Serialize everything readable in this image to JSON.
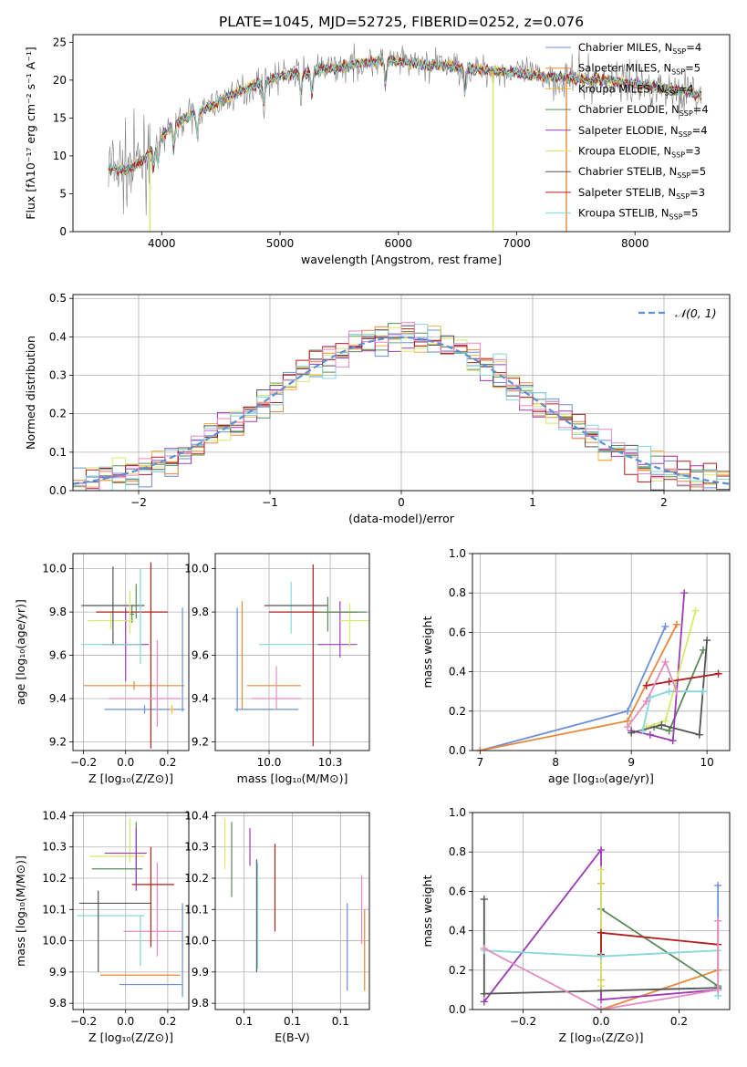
{
  "figure_title": "PLATE=1045, MJD=52725, FIBERID=0252, z=0.076",
  "colors": {
    "Chabrier MILES": "#6a90d8",
    "Salpeter MILES": "#e8883a",
    "Kroupa MILES": "#f2b33d",
    "Chabrier ELODIE": "#5a8a5a",
    "Salpeter ELODIE": "#9b3bb5",
    "Kroupa ELODIE": "#d8e86a",
    "Chabrier STELIB": "#555555",
    "Salpeter STELIB": "#b01e1e",
    "Kroupa STELIB": "#84d8d8",
    "pink": "#e58ac0",
    "data": "#7f7f7f",
    "normal": "#5b8fd6"
  },
  "chart_data": [
    {
      "id": "spectrum",
      "type": "line",
      "title": "PLATE=1045, MJD=52725, FIBERID=0252, z=0.076",
      "xlabel": "wavelength [Angstrom, rest frame]",
      "ylabel": "Flux [fλ10⁻¹⁷ erg cm⁻² s⁻¹ A⁻¹]",
      "xlim": [
        3250,
        8800
      ],
      "ylim": [
        0,
        26
      ],
      "xticks": [
        4000,
        5000,
        6000,
        7000,
        8000
      ],
      "yticks": [
        0,
        5,
        10,
        15,
        20,
        25
      ],
      "legend_position": "top-right",
      "legend": [
        {
          "label": "Chabrier MILES, N",
          "sub": "SSP",
          "suffix": "=4"
        },
        {
          "label": "Salpeter MILES, N",
          "sub": "SSP",
          "suffix": "=5"
        },
        {
          "label": "Kroupa MILES, N",
          "sub": "SSP",
          "suffix": "=4"
        },
        {
          "label": "Chabrier ELODIE, N",
          "sub": "SSP",
          "suffix": "=4"
        },
        {
          "label": "Salpeter ELODIE, N",
          "sub": "SSP",
          "suffix": "=4"
        },
        {
          "label": "Kroupa ELODIE, N",
          "sub": "SSP",
          "suffix": "=3"
        },
        {
          "label": "Chabrier STELIB, N",
          "sub": "SSP",
          "suffix": "=5"
        },
        {
          "label": "Salpeter STELIB, N",
          "sub": "SSP",
          "suffix": "=3"
        },
        {
          "label": "Kroupa STELIB, N",
          "sub": "SSP",
          "suffix": "=5"
        }
      ],
      "continuum": {
        "x": [
          3550,
          3700,
          3850,
          3950,
          4050,
          4200,
          4400,
          4600,
          4800,
          5000,
          5200,
          5400,
          5600,
          5800,
          6000,
          6200,
          6400,
          6600,
          6800,
          7000,
          7200,
          7400,
          7600,
          7800,
          8000,
          8200,
          8400,
          8550
        ],
        "y": [
          8.5,
          8.0,
          9.5,
          11.5,
          13.5,
          15.0,
          16.5,
          18.0,
          19.5,
          20.5,
          21.0,
          21.5,
          22.0,
          22.5,
          22.5,
          22.0,
          22.0,
          21.5,
          21.2,
          21.0,
          20.6,
          20.3,
          20.0,
          20.0,
          19.5,
          19.0,
          18.6,
          18.0
        ]
      },
      "drops": [
        {
          "x": 6800,
          "y": 0
        },
        {
          "x": 7420,
          "y": 0
        },
        {
          "x": 3900,
          "y": 0
        }
      ]
    },
    {
      "id": "residuals",
      "type": "area",
      "xlabel": "(data-model)/error",
      "ylabel": "Normed distribution",
      "xlim": [
        -2.5,
        2.5
      ],
      "ylim": [
        0,
        0.51
      ],
      "xticks": [
        -2,
        -1,
        0,
        1,
        2
      ],
      "yticks": [
        0.0,
        0.1,
        0.2,
        0.3,
        0.4,
        0.5
      ],
      "grid": true,
      "legend_position": "top-right",
      "normal_label": "𝒩(0, 1)",
      "bin_edges_start": -2.5,
      "bin_width": 0.1
    },
    {
      "id": "age_vs_Z",
      "type": "scatter",
      "xlabel": "Z [log₁₀(Z/Z⊙)]",
      "ylabel": "age  [log₁₀(age/yr)]",
      "xlim": [
        -0.25,
        0.3
      ],
      "ylim": [
        9.16,
        10.07
      ],
      "xticks": [
        -0.2,
        0.0,
        0.2
      ],
      "yticks": [
        9.2,
        9.4,
        9.6,
        9.8,
        10.0
      ],
      "grid": true,
      "points": [
        {
          "c": "Chabrier MILES",
          "x": 0.09,
          "y": 9.35,
          "xe": 0.19,
          "ye": 0.02
        },
        {
          "c": "Salpeter MILES",
          "x": 0.04,
          "y": 9.46,
          "xe": 0.24,
          "ye": 0.02
        },
        {
          "c": "Kroupa MILES",
          "x": 0.22,
          "y": 9.35,
          "xe": 0.01,
          "ye": 0.02
        },
        {
          "c": "Chabrier ELODIE",
          "x": 0.03,
          "y": 9.79,
          "xe": 0.01,
          "ye": 0.04
        },
        {
          "c": "Salpeter ELODIE",
          "x": 0.0,
          "y": 9.65,
          "xe": 0.11,
          "ye": 0.17
        },
        {
          "c": "Kroupa ELODIE",
          "x": -0.07,
          "y": 9.76,
          "xe": 0.11,
          "ye": 0.04
        },
        {
          "c": "Chabrier STELIB",
          "x": -0.06,
          "y": 9.83,
          "xe": 0.15,
          "ye": 0.18
        },
        {
          "c": "Salpeter STELIB",
          "x": 0.03,
          "y": 9.8,
          "xe": 0.17,
          "ye": 0.0
        },
        {
          "c": "Salpeter STELIB",
          "x": 0.12,
          "y": 9.6,
          "xe": 0.0,
          "ye": 0.43
        },
        {
          "c": "Kroupa STELIB",
          "x": -0.07,
          "y": 9.65,
          "xe": 0.14,
          "ye": 0.0
        },
        {
          "c": "Kroupa STELIB",
          "x": 0.07,
          "y": 9.78,
          "xe": 0.0,
          "ye": 0.22
        },
        {
          "c": "pink",
          "x": 0.09,
          "y": 9.4,
          "xe": 0.17,
          "ye": 0.0
        },
        {
          "c": "pink",
          "x": 0.15,
          "y": 9.47,
          "xe": 0.0,
          "ye": 0.2
        },
        {
          "c": "Chabrier MILES",
          "x": 0.27,
          "y": 9.58,
          "xe": 0.0,
          "ye": 0.24
        },
        {
          "c": "Kroupa ELODIE",
          "x": 0.02,
          "y": 9.8,
          "xe": 0.0,
          "ye": 0.1
        },
        {
          "c": "Chabrier ELODIE",
          "x": 0.05,
          "y": 9.85,
          "xe": 0.0,
          "ye": 0.08
        }
      ]
    },
    {
      "id": "age_vs_mass",
      "type": "scatter",
      "xlabel": "mass [log₁₀(M/M⊙)]",
      "ylabel": "",
      "xlim": [
        9.78,
        10.41
      ],
      "ylim": [
        9.16,
        10.07
      ],
      "xticks": [
        10.0,
        10.25
      ],
      "yticks": [
        9.2,
        9.4,
        9.6,
        9.8,
        10.0
      ],
      "grid": true,
      "points": [
        {
          "c": "Chabrier MILES",
          "x": 9.99,
          "y": 9.35,
          "xe": 0.13,
          "ye": 0.0
        },
        {
          "c": "Chabrier MILES",
          "x": 9.87,
          "y": 9.58,
          "xe": 0.0,
          "ye": 0.24
        },
        {
          "c": "Salpeter MILES",
          "x": 10.02,
          "y": 9.46,
          "xe": 0.11,
          "ye": 0.0
        },
        {
          "c": "Salpeter MILES",
          "x": 9.89,
          "y": 9.6,
          "xe": 0.0,
          "ye": 0.25
        },
        {
          "c": "pink",
          "x": 10.03,
          "y": 9.4,
          "xe": 0.1,
          "ye": 0.0
        },
        {
          "c": "pink",
          "x": 10.03,
          "y": 9.45,
          "xe": 0.0,
          "ye": 0.1
        },
        {
          "c": "Kroupa STELIB",
          "x": 10.09,
          "y": 9.65,
          "xe": 0.13,
          "ye": 0.0
        },
        {
          "c": "Kroupa STELIB",
          "x": 10.09,
          "y": 9.82,
          "xe": 0.0,
          "ye": 0.12
        },
        {
          "c": "Chabrier STELIB",
          "x": 10.11,
          "y": 9.83,
          "xe": 0.13,
          "ye": 0.0
        },
        {
          "c": "Salpeter STELIB",
          "x": 10.18,
          "y": 9.8,
          "xe": 0.18,
          "ye": 0.0
        },
        {
          "c": "Salpeter STELIB",
          "x": 10.18,
          "y": 9.6,
          "xe": 0.0,
          "ye": 0.42
        },
        {
          "c": "Salpeter ELODIE",
          "x": 10.28,
          "y": 9.65,
          "xe": 0.08,
          "ye": 0.0
        },
        {
          "c": "Salpeter ELODIE",
          "x": 10.29,
          "y": 9.72,
          "xe": 0.0,
          "ye": 0.13
        },
        {
          "c": "Kroupa ELODIE",
          "x": 10.35,
          "y": 9.76,
          "xe": 0.06,
          "ye": 0.0
        },
        {
          "c": "Kroupa ELODIE",
          "x": 10.33,
          "y": 9.74,
          "xe": 0.0,
          "ye": 0.1
        },
        {
          "c": "Chabrier ELODIE",
          "x": 10.24,
          "y": 9.79,
          "xe": 0.0,
          "ye": 0.08
        },
        {
          "c": "Chabrier ELODIE",
          "x": 10.3,
          "y": 9.8,
          "xe": 0.1,
          "ye": 0.0
        }
      ]
    },
    {
      "id": "mass_weight_vs_age",
      "type": "line",
      "xlabel": "age  [log₁₀(age/yr)]",
      "ylabel": "mass weight",
      "xlim": [
        6.9,
        10.3
      ],
      "ylim": [
        0,
        1
      ],
      "xticks": [
        7,
        8,
        9,
        10
      ],
      "yticks": [
        0.0,
        0.2,
        0.4,
        0.6,
        0.8,
        1.0
      ],
      "grid": true,
      "series": [
        {
          "c": "Chabrier MILES",
          "x": [
            7.0,
            8.95,
            9.45
          ],
          "y": [
            0.0,
            0.2,
            0.63
          ]
        },
        {
          "c": "Salpeter MILES",
          "x": [
            7.0,
            8.95,
            9.6
          ],
          "y": [
            0.0,
            0.15,
            0.64
          ]
        },
        {
          "c": "Chabrier ELODIE",
          "x": [
            9.3,
            9.5,
            9.95
          ],
          "y": [
            0.12,
            0.1,
            0.51
          ]
        },
        {
          "c": "Salpeter ELODIE",
          "x": [
            9.0,
            9.25,
            9.55,
            9.7
          ],
          "y": [
            0.1,
            0.08,
            0.05,
            0.8
          ]
        },
        {
          "c": "Kroupa ELODIE",
          "x": [
            9.2,
            9.45,
            9.85
          ],
          "y": [
            0.12,
            0.15,
            0.71
          ]
        },
        {
          "c": "Chabrier STELIB",
          "x": [
            9.0,
            9.4,
            9.9,
            10.0
          ],
          "y": [
            0.09,
            0.13,
            0.08,
            0.56
          ]
        },
        {
          "c": "Salpeter STELIB",
          "x": [
            9.2,
            9.5,
            10.15
          ],
          "y": [
            0.33,
            0.35,
            0.39
          ]
        },
        {
          "c": "Kroupa STELIB",
          "x": [
            9.15,
            9.25,
            9.5,
            9.95
          ],
          "y": [
            0.1,
            0.27,
            0.3,
            0.3
          ]
        },
        {
          "c": "pink",
          "x": [
            8.95,
            9.2,
            9.45,
            9.6
          ],
          "y": [
            0.12,
            0.25,
            0.45,
            0.3
          ]
        }
      ]
    },
    {
      "id": "mass_vs_Z",
      "type": "scatter",
      "xlabel": "Z [log₁₀(Z/Z⊙)]",
      "ylabel": "mass [log₁₀(M/M⊙)]",
      "xlim": [
        -0.25,
        0.3
      ],
      "ylim": [
        9.78,
        10.41
      ],
      "xticks": [
        -0.2,
        0.0,
        0.2
      ],
      "yticks": [
        9.8,
        9.9,
        10.0,
        10.1,
        10.2,
        10.3,
        10.4
      ],
      "grid": true,
      "points": [
        {
          "c": "Chabrier MILES",
          "x": 0.12,
          "y": 9.86,
          "xe": 0.15,
          "ye": 0.0
        },
        {
          "c": "Chabrier MILES",
          "x": 0.27,
          "y": 9.97,
          "xe": 0.0,
          "ye": 0.15
        },
        {
          "c": "Salpeter MILES",
          "x": 0.07,
          "y": 9.89,
          "xe": 0.19,
          "ye": 0.0
        },
        {
          "c": "Kroupa STELIB",
          "x": -0.07,
          "y": 10.08,
          "xe": 0.16,
          "ye": 0.0
        },
        {
          "c": "Kroupa STELIB",
          "x": 0.07,
          "y": 10.0,
          "xe": 0.0,
          "ye": 0.08
        },
        {
          "c": "Chabrier STELIB",
          "x": -0.05,
          "y": 10.12,
          "xe": 0.17,
          "ye": 0.0
        },
        {
          "c": "Chabrier STELIB",
          "x": -0.13,
          "y": 10.03,
          "xe": 0.0,
          "ye": 0.13
        },
        {
          "c": "pink",
          "x": 0.13,
          "y": 10.03,
          "xe": 0.14,
          "ye": 0.0
        },
        {
          "c": "pink",
          "x": 0.15,
          "y": 10.1,
          "xe": 0.0,
          "ye": 0.15
        },
        {
          "c": "Salpeter STELIB",
          "x": 0.13,
          "y": 10.18,
          "xe": 0.1,
          "ye": 0.0
        },
        {
          "c": "Salpeter STELIB",
          "x": 0.12,
          "y": 10.14,
          "xe": 0.0,
          "ye": 0.16
        },
        {
          "c": "Chabrier ELODIE",
          "x": -0.04,
          "y": 10.23,
          "xe": 0.12,
          "ye": 0.0
        },
        {
          "c": "Chabrier ELODIE",
          "x": 0.05,
          "y": 10.28,
          "xe": 0.0,
          "ye": 0.1
        },
        {
          "c": "Kroupa ELODIE",
          "x": -0.04,
          "y": 10.27,
          "xe": 0.13,
          "ye": 0.0
        },
        {
          "c": "Kroupa ELODIE",
          "x": 0.02,
          "y": 10.32,
          "xe": 0.0,
          "ye": 0.07
        },
        {
          "c": "Salpeter ELODIE",
          "x": 0.0,
          "y": 10.28,
          "xe": 0.1,
          "ye": 0.0
        },
        {
          "c": "Salpeter ELODIE",
          "x": 0.05,
          "y": 10.26,
          "xe": 0.0,
          "ye": 0.1
        }
      ]
    },
    {
      "id": "mass_vs_ebv",
      "type": "scatter",
      "xlabel": "E(B-V)",
      "ylabel": "",
      "xlim": [
        0.02,
        0.18
      ],
      "ylim": [
        9.78,
        10.41
      ],
      "xticks": [
        0.05,
        0.1,
        0.15
      ],
      "yticks": [
        9.8,
        9.9,
        10.0,
        10.1,
        10.2,
        10.3,
        10.4
      ],
      "grid": true,
      "points": [
        {
          "c": "Kroupa ELODIE",
          "x": 0.03,
          "y": 10.31,
          "xe": 0.0,
          "ye": 0.08
        },
        {
          "c": "Chabrier ELODIE",
          "x": 0.037,
          "y": 10.26,
          "xe": 0.0,
          "ye": 0.12
        },
        {
          "c": "Salpeter ELODIE",
          "x": 0.056,
          "y": 10.3,
          "xe": 0.0,
          "ye": 0.06
        },
        {
          "c": "Chabrier STELIB",
          "x": 0.063,
          "y": 10.08,
          "xe": 0.0,
          "ye": 0.18
        },
        {
          "c": "Kroupa STELIB",
          "x": 0.064,
          "y": 10.08,
          "xe": 0.0,
          "ye": 0.17
        },
        {
          "c": "Salpeter STELIB",
          "x": 0.082,
          "y": 10.17,
          "xe": 0.0,
          "ye": 0.14
        },
        {
          "c": "Chabrier MILES",
          "x": 0.157,
          "y": 9.98,
          "xe": 0.0,
          "ye": 0.14
        },
        {
          "c": "pink",
          "x": 0.172,
          "y": 10.1,
          "xe": 0.0,
          "ye": 0.11
        },
        {
          "c": "Salpeter MILES",
          "x": 0.175,
          "y": 9.97,
          "xe": 0.0,
          "ye": 0.13
        }
      ]
    },
    {
      "id": "mass_weight_vs_Z",
      "type": "line",
      "xlabel": "Z [log₁₀(Z/Z⊙)]",
      "ylabel": "mass weight",
      "xlim": [
        -0.33,
        0.33
      ],
      "ylim": [
        0,
        1
      ],
      "xticks": [
        -0.2,
        0.0,
        0.2
      ],
      "yticks": [
        0.0,
        0.2,
        0.4,
        0.6,
        0.8,
        1.0
      ],
      "grid": true,
      "series": [
        {
          "c": "Chabrier MILES",
          "x": [
            0.3,
            0.3
          ],
          "y": [
            0.2,
            0.63
          ]
        },
        {
          "c": "Salpeter MILES",
          "x": [
            0.0,
            0.3
          ],
          "y": [
            0.0,
            0.2
          ]
        },
        {
          "c": "Kroupa MILES",
          "x": [
            0.0,
            0.0
          ],
          "y": [
            0.15,
            0.64
          ]
        },
        {
          "c": "Chabrier ELODIE",
          "x": [
            0.0,
            0.3
          ],
          "y": [
            0.51,
            0.12
          ]
        },
        {
          "c": "Salpeter ELODIE",
          "x": [
            -0.3,
            0.0,
            0.0,
            0.3
          ],
          "y": [
            0.04,
            0.81,
            0.05,
            0.1
          ]
        },
        {
          "c": "Kroupa ELODIE",
          "x": [
            0.0,
            0.0
          ],
          "y": [
            0.12,
            0.71
          ]
        },
        {
          "c": "Chabrier STELIB",
          "x": [
            -0.3,
            -0.3,
            0.3
          ],
          "y": [
            0.56,
            0.08,
            0.11
          ]
        },
        {
          "c": "Salpeter STELIB",
          "x": [
            0.0,
            0.0,
            0.3
          ],
          "y": [
            0.28,
            0.39,
            0.33
          ]
        },
        {
          "c": "Kroupa STELIB",
          "x": [
            -0.3,
            0.0,
            0.3,
            0.3
          ],
          "y": [
            0.3,
            0.27,
            0.3,
            0.07
          ]
        },
        {
          "c": "pink",
          "x": [
            -0.3,
            0.0,
            0.3,
            0.3
          ],
          "y": [
            0.31,
            0.0,
            0.1,
            0.45
          ]
        }
      ]
    }
  ]
}
